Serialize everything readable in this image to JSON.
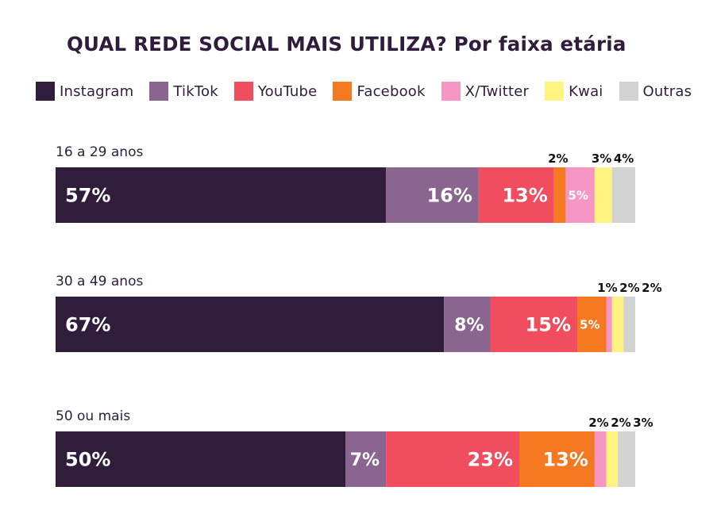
{
  "title": "QUAL REDE SOCIAL MAIS UTILIZA? Por faixa etária",
  "chart_data": {
    "type": "bar",
    "orientation": "horizontal-stacked",
    "title": "QUAL REDE SOCIAL MAIS UTILIZA? Por faixa etária",
    "categories": [
      "16 a 29 anos",
      "30 a 49 anos",
      "50 ou mais"
    ],
    "series": [
      {
        "name": "Instagram",
        "color": "#2f1d3b",
        "values": [
          57,
          67,
          50
        ],
        "labels": [
          "57%",
          "67%",
          "50%"
        ]
      },
      {
        "name": "TikTok",
        "color": "#8a6590",
        "values": [
          16,
          8,
          7
        ],
        "labels": [
          "16%",
          "8%",
          "7%"
        ]
      },
      {
        "name": "YouTube",
        "color": "#f04e5e",
        "values": [
          13,
          15,
          23
        ],
        "labels": [
          "13%",
          "15%",
          "23%"
        ]
      },
      {
        "name": "Facebook",
        "color": "#f47920",
        "values": [
          2,
          5,
          13
        ],
        "labels": [
          "2%",
          "5%",
          "13%"
        ]
      },
      {
        "name": "X/Twitter",
        "color": "#f596c4",
        "values": [
          5,
          1,
          2
        ],
        "labels": [
          "5%",
          "1%",
          "2%"
        ]
      },
      {
        "name": "Kwai",
        "color": "#fff47f",
        "values": [
          3,
          2,
          2
        ],
        "labels": [
          "3%",
          "2%",
          "2%"
        ]
      },
      {
        "name": "Outras",
        "color": "#d3d3d3",
        "values": [
          4,
          2,
          3
        ],
        "labels": [
          "4%",
          "2%",
          "3%"
        ]
      }
    ],
    "value_unit": "%",
    "legend_position": "top",
    "grid": false
  }
}
